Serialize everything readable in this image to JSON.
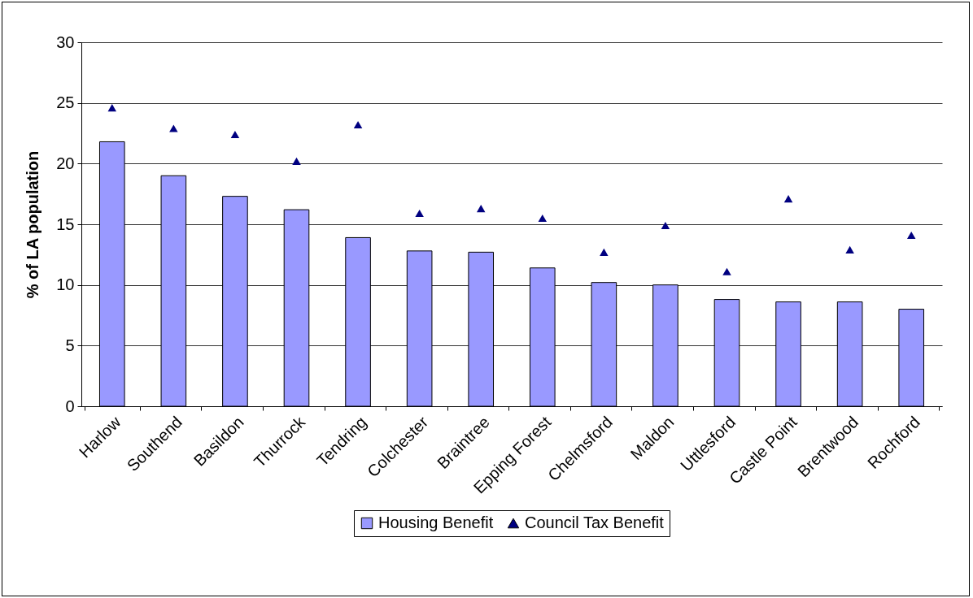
{
  "chart_data": {
    "type": "bar",
    "ylabel": "% of LA population",
    "categories": [
      "Harlow",
      "Southend",
      "Basildon",
      "Thurrock",
      "Tendring",
      "Colchester",
      "Braintree",
      "Epping Forest",
      "Chelmsford",
      "Maldon",
      "Uttlesford",
      "Castle Point",
      "Brentwood",
      "Rochford"
    ],
    "series": [
      {
        "name": "Housing Benefit",
        "color": "#9999ff",
        "values": [
          21.8,
          19.0,
          17.3,
          16.2,
          13.9,
          12.8,
          12.7,
          11.4,
          10.2,
          10.0,
          8.8,
          8.6,
          8.6,
          8.0
        ]
      },
      {
        "name": "Council Tax Benefit",
        "type": "scatter",
        "color": "#000080",
        "values": [
          24.6,
          22.9,
          22.4,
          20.2,
          23.2,
          15.9,
          16.3,
          15.5,
          12.7,
          14.9,
          11.1,
          17.1,
          12.9,
          14.1
        ]
      }
    ],
    "ylim": [
      0,
      30
    ],
    "yticks": [
      0,
      5,
      10,
      15,
      20,
      25,
      30
    ],
    "grid": "y",
    "legend": "bottom",
    "marker": "triangle"
  }
}
